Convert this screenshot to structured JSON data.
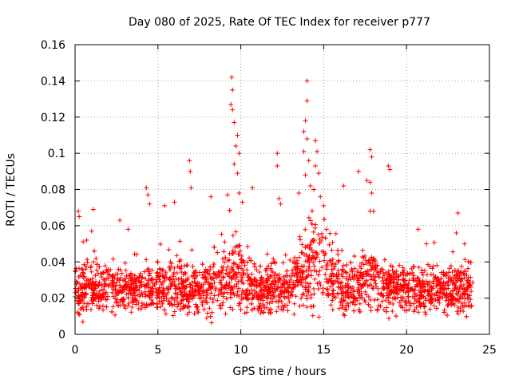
{
  "chart_data": {
    "type": "scatter",
    "title": "Day 080 of 2025, Rate Of TEC Index for receiver p777",
    "xlabel": "GPS time / hours",
    "ylabel": "ROTI / TECUs",
    "xlim": [
      0,
      25
    ],
    "ylim": [
      0,
      0.16
    ],
    "xticks": [
      0,
      5,
      10,
      15,
      20,
      25
    ],
    "xtick_labels": [
      "0",
      "5",
      "10",
      "15",
      "20",
      "25"
    ],
    "yticks": [
      0,
      0.02,
      0.04,
      0.06,
      0.08,
      0.1,
      0.12,
      0.14,
      0.16
    ],
    "ytick_labels": [
      "0",
      "0.02",
      "0.04",
      "0.06",
      "0.08",
      "0.1",
      "0.12",
      "0.14",
      "0.16"
    ],
    "grid": true,
    "marker": "plus",
    "color": "#ff0000",
    "x_range_of_data": [
      0,
      24
    ],
    "series": [
      {
        "name": "ROTI",
        "bulk_band": [
          0.005,
          0.045
        ],
        "typical_median": 0.02,
        "notable_points": [
          {
            "x": 0.2,
            "y": 0.068
          },
          {
            "x": 0.25,
            "y": 0.065
          },
          {
            "x": 1.1,
            "y": 0.069
          },
          {
            "x": 1.0,
            "y": 0.057
          },
          {
            "x": 0.7,
            "y": 0.052
          },
          {
            "x": 2.7,
            "y": 0.063
          },
          {
            "x": 3.2,
            "y": 0.058
          },
          {
            "x": 4.3,
            "y": 0.081
          },
          {
            "x": 4.4,
            "y": 0.077
          },
          {
            "x": 4.5,
            "y": 0.072
          },
          {
            "x": 5.4,
            "y": 0.071
          },
          {
            "x": 6.0,
            "y": 0.073
          },
          {
            "x": 6.9,
            "y": 0.096
          },
          {
            "x": 6.95,
            "y": 0.09
          },
          {
            "x": 7.0,
            "y": 0.081
          },
          {
            "x": 8.2,
            "y": 0.076
          },
          {
            "x": 9.2,
            "y": 0.077
          },
          {
            "x": 9.45,
            "y": 0.142
          },
          {
            "x": 9.5,
            "y": 0.135
          },
          {
            "x": 9.4,
            "y": 0.127
          },
          {
            "x": 9.5,
            "y": 0.124
          },
          {
            "x": 9.6,
            "y": 0.117
          },
          {
            "x": 9.8,
            "y": 0.11
          },
          {
            "x": 9.7,
            "y": 0.104
          },
          {
            "x": 9.9,
            "y": 0.1
          },
          {
            "x": 9.6,
            "y": 0.094
          },
          {
            "x": 9.8,
            "y": 0.089
          },
          {
            "x": 9.9,
            "y": 0.078
          },
          {
            "x": 10.1,
            "y": 0.073
          },
          {
            "x": 10.7,
            "y": 0.081
          },
          {
            "x": 12.2,
            "y": 0.1
          },
          {
            "x": 12.2,
            "y": 0.093
          },
          {
            "x": 12.3,
            "y": 0.075
          },
          {
            "x": 12.4,
            "y": 0.072
          },
          {
            "x": 13.5,
            "y": 0.078
          },
          {
            "x": 14.0,
            "y": 0.14
          },
          {
            "x": 14.0,
            "y": 0.129
          },
          {
            "x": 13.9,
            "y": 0.118
          },
          {
            "x": 13.8,
            "y": 0.112
          },
          {
            "x": 14.0,
            "y": 0.108
          },
          {
            "x": 13.8,
            "y": 0.101
          },
          {
            "x": 14.1,
            "y": 0.096
          },
          {
            "x": 13.9,
            "y": 0.088
          },
          {
            "x": 14.2,
            "y": 0.082
          },
          {
            "x": 14.5,
            "y": 0.107
          },
          {
            "x": 14.6,
            "y": 0.101
          },
          {
            "x": 14.5,
            "y": 0.093
          },
          {
            "x": 14.7,
            "y": 0.089
          },
          {
            "x": 14.4,
            "y": 0.08
          },
          {
            "x": 14.8,
            "y": 0.076
          },
          {
            "x": 15.0,
            "y": 0.071
          },
          {
            "x": 16.2,
            "y": 0.082
          },
          {
            "x": 17.1,
            "y": 0.09
          },
          {
            "x": 17.6,
            "y": 0.085
          },
          {
            "x": 17.8,
            "y": 0.102
          },
          {
            "x": 17.9,
            "y": 0.098
          },
          {
            "x": 17.8,
            "y": 0.084
          },
          {
            "x": 17.9,
            "y": 0.078
          },
          {
            "x": 18.0,
            "y": 0.068
          },
          {
            "x": 18.9,
            "y": 0.093
          },
          {
            "x": 19.0,
            "y": 0.091
          },
          {
            "x": 20.7,
            "y": 0.058
          },
          {
            "x": 21.2,
            "y": 0.05
          },
          {
            "x": 23.1,
            "y": 0.067
          },
          {
            "x": 23.0,
            "y": 0.056
          },
          {
            "x": 23.5,
            "y": 0.05
          }
        ]
      }
    ]
  }
}
